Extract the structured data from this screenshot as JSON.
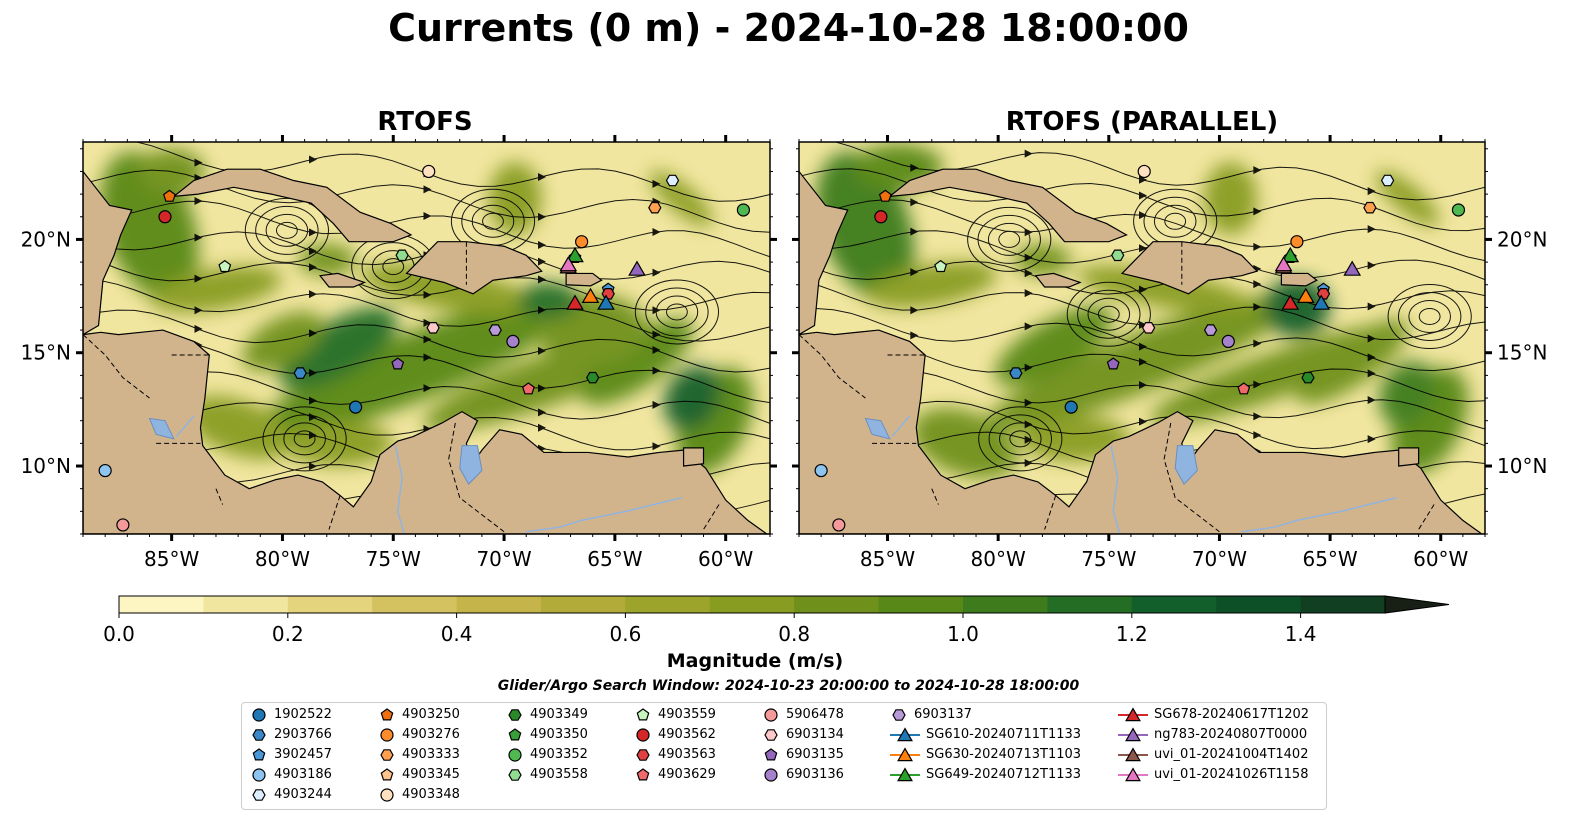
{
  "title": "Currents (0 m) - 2024-10-28 18:00:00",
  "panels": [
    {
      "title": "RTOFS"
    },
    {
      "title": "RTOFS (PARALLEL)"
    }
  ],
  "axes": {
    "lon_ticks": [
      "85°W",
      "80°W",
      "75°W",
      "70°W",
      "65°W",
      "60°W"
    ],
    "lon_values": [
      -85,
      -80,
      -75,
      -70,
      -65,
      -60
    ],
    "lat_ticks": [
      "20°N",
      "15°N",
      "10°N"
    ],
    "lat_values": [
      20,
      15,
      10
    ],
    "lon_range": [
      -89,
      -58
    ],
    "lat_range": [
      7,
      24.3
    ]
  },
  "colorbar": {
    "label": "Magnitude (m/s)",
    "ticks": [
      "0.0",
      "0.2",
      "0.4",
      "0.6",
      "0.8",
      "1.0",
      "1.2",
      "1.4"
    ],
    "tick_values": [
      0,
      0.2,
      0.4,
      0.6,
      0.8,
      1.0,
      1.2,
      1.4
    ],
    "range": [
      0,
      1.5
    ],
    "extend": "max",
    "colors": [
      "#fdf6c3",
      "#f1e6a0",
      "#e3d47d",
      "#d4c15f",
      "#c4b44a",
      "#b2ab3a",
      "#9da42c",
      "#889c22",
      "#6f911c",
      "#588818",
      "#3e7b1d",
      "#236d25",
      "#125f2c",
      "#0d5028",
      "#103f22",
      "#152f1b",
      "#181f14"
    ]
  },
  "search_window": "Glider/Argo Search Window: 2024-10-23 20:00:00 to 2024-10-28 18:00:00",
  "legend": {
    "columns": [
      [
        {
          "label": "1902522",
          "marker": "circle",
          "color": "#1f77b4"
        },
        {
          "label": "2903766",
          "marker": "hexagon",
          "color": "#3a88c8"
        },
        {
          "label": "3902457",
          "marker": "pentagon",
          "color": "#4a98d8"
        },
        {
          "label": "4903186",
          "marker": "circle",
          "color": "#8ec4f0"
        },
        {
          "label": "4903244",
          "marker": "hexagon",
          "color": "#ddeeff"
        }
      ],
      [
        {
          "label": "4903250",
          "marker": "pentagon",
          "color": "#f07010"
        },
        {
          "label": "4903276",
          "marker": "circle",
          "color": "#ff8c2a"
        },
        {
          "label": "4903333",
          "marker": "hexagon",
          "color": "#ffa050"
        },
        {
          "label": "4903345",
          "marker": "pentagon",
          "color": "#ffc48c"
        },
        {
          "label": "4903348",
          "marker": "circle",
          "color": "#ffe0c0"
        }
      ],
      [
        {
          "label": "4903349",
          "marker": "hexagon",
          "color": "#2a8a2a"
        },
        {
          "label": "4903350",
          "marker": "pentagon",
          "color": "#38a038"
        },
        {
          "label": "4903352",
          "marker": "circle",
          "color": "#50b850"
        },
        {
          "label": "4903558",
          "marker": "hexagon",
          "color": "#90dc90"
        }
      ],
      [
        {
          "label": "4903559",
          "marker": "pentagon",
          "color": "#c8f4c0"
        },
        {
          "label": "4903562",
          "marker": "circle",
          "color": "#d62728"
        },
        {
          "label": "4903563",
          "marker": "hexagon",
          "color": "#e04040"
        },
        {
          "label": "4903629",
          "marker": "pentagon",
          "color": "#f06a6a"
        }
      ],
      [
        {
          "label": "5906478",
          "marker": "circle",
          "color": "#f59a9a"
        },
        {
          "label": "6903134",
          "marker": "hexagon",
          "color": "#fcc8c8"
        },
        {
          "label": "6903135",
          "marker": "pentagon",
          "color": "#9467bd"
        },
        {
          "label": "6903136",
          "marker": "circle",
          "color": "#a682cc"
        }
      ],
      [
        {
          "label": "6903137",
          "marker": "hexagon",
          "color": "#b89ad8"
        },
        {
          "label": "SG610-20240711T1133",
          "marker": "triangle",
          "color": "#1f77b4"
        },
        {
          "label": "SG630-20240713T1103",
          "marker": "triangle",
          "color": "#ff7f0e"
        },
        {
          "label": "SG649-20240712T1133",
          "marker": "triangle",
          "color": "#2ca02c"
        }
      ],
      [
        {
          "label": "SG678-20240617T1202",
          "marker": "triangle",
          "color": "#d62728"
        },
        {
          "label": "ng783-20240807T0000",
          "marker": "triangle",
          "color": "#9467bd"
        },
        {
          "label": "uvi_01-20241004T1402",
          "marker": "triangle",
          "color": "#8c564b"
        },
        {
          "label": "uvi_01-20241026T1158",
          "marker": "triangle",
          "color": "#e377c2"
        }
      ]
    ]
  },
  "platforms": [
    {
      "id": "1902522",
      "lon": -76.7,
      "lat": 12.6
    },
    {
      "id": "2903766",
      "lon": -79.2,
      "lat": 14.1
    },
    {
      "id": "3902457",
      "lon": -65.3,
      "lat": 17.8
    },
    {
      "id": "4903186",
      "lon": -88.0,
      "lat": 9.8
    },
    {
      "id": "4903244",
      "lon": -62.4,
      "lat": 22.6
    },
    {
      "id": "4903250",
      "lon": -85.1,
      "lat": 21.9
    },
    {
      "id": "4903276",
      "lon": -66.5,
      "lat": 19.9
    },
    {
      "id": "4903333",
      "lon": -63.2,
      "lat": 21.4
    },
    {
      "id": "4903345",
      "lon": -73.4,
      "lat": 23.0
    },
    {
      "id": "4903348",
      "lon": -73.4,
      "lat": 23.0
    },
    {
      "id": "4903349",
      "lon": -66.0,
      "lat": 13.9
    },
    {
      "id": "4903350",
      "lon": -66.8,
      "lat": 19.2
    },
    {
      "id": "4903352",
      "lon": -59.2,
      "lat": 21.3
    },
    {
      "id": "4903558",
      "lon": -74.6,
      "lat": 19.3
    },
    {
      "id": "4903559",
      "lon": -82.6,
      "lat": 18.8
    },
    {
      "id": "4903562",
      "lon": -85.3,
      "lat": 21.0
    },
    {
      "id": "4903563",
      "lon": -65.3,
      "lat": 17.6
    },
    {
      "id": "4903629",
      "lon": -68.9,
      "lat": 13.4
    },
    {
      "id": "5906478",
      "lon": -87.2,
      "lat": 7.4
    },
    {
      "id": "6903134",
      "lon": -73.2,
      "lat": 16.1
    },
    {
      "id": "6903135",
      "lon": -74.8,
      "lat": 14.5
    },
    {
      "id": "6903136",
      "lon": -69.6,
      "lat": 15.5
    },
    {
      "id": "6903137",
      "lon": -70.4,
      "lat": 16.0
    },
    {
      "id": "SG610-20240711T1133",
      "lon": -65.4,
      "lat": 17.2
    },
    {
      "id": "SG630-20240713T1103",
      "lon": -66.1,
      "lat": 17.5
    },
    {
      "id": "SG649-20240712T1133",
      "lon": -66.8,
      "lat": 19.3
    },
    {
      "id": "SG678-20240617T1202",
      "lon": -66.8,
      "lat": 17.2
    },
    {
      "id": "ng783-20240807T0000",
      "lon": -64.0,
      "lat": 18.7
    },
    {
      "id": "uvi_01-20241004T1402",
      "lon": -67.1,
      "lat": 18.8
    },
    {
      "id": "uvi_01-20241026T1158",
      "lon": -67.1,
      "lat": 18.9
    }
  ]
}
